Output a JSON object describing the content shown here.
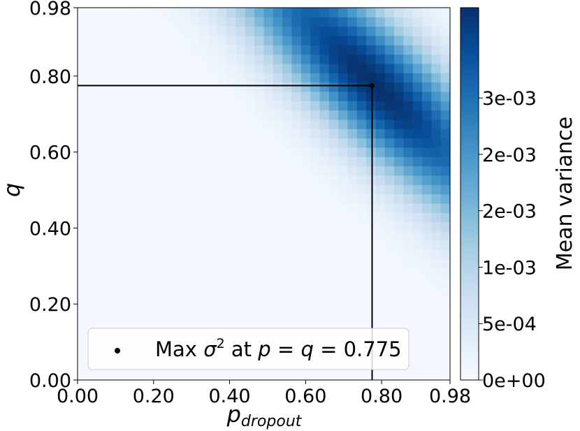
{
  "chart_data": {
    "type": "heatmap",
    "xlabel_main": "p",
    "xlabel_sub": "dropout",
    "ylabel": "q",
    "x_ticks": [
      "0.00",
      "0.20",
      "0.40",
      "0.60",
      "0.80",
      "0.98"
    ],
    "y_ticks": [
      "0.00",
      "0.20",
      "0.40",
      "0.60",
      "0.80",
      "0.98"
    ],
    "xlim": [
      0.0,
      0.98
    ],
    "ylim": [
      0.0,
      0.98
    ],
    "grid_n": 40,
    "colormap": "Blues",
    "colorbar": {
      "label": "Mean variance",
      "range": [
        0,
        0.0033
      ],
      "ticks": [
        {
          "value": 0.0,
          "label": "0e+00"
        },
        {
          "value": 0.0005,
          "label": "5e-04"
        },
        {
          "value": 0.001,
          "label": "1e-03"
        },
        {
          "value": 0.0015,
          "label": "2e-03"
        },
        {
          "value": 0.002,
          "label": "2e-03"
        },
        {
          "value": 0.0025,
          "label": "3e-03"
        }
      ]
    },
    "max_point": {
      "p": 0.775,
      "q": 0.775
    },
    "legend": {
      "placement": "lower-left",
      "label_prefix": "Max",
      "label_sigma": "σ",
      "label_exp": "2",
      "label_middle": "at",
      "label_p": "p",
      "label_eq1": "=",
      "label_q": "q",
      "label_eq2": "=",
      "label_value": "0.775"
    }
  }
}
